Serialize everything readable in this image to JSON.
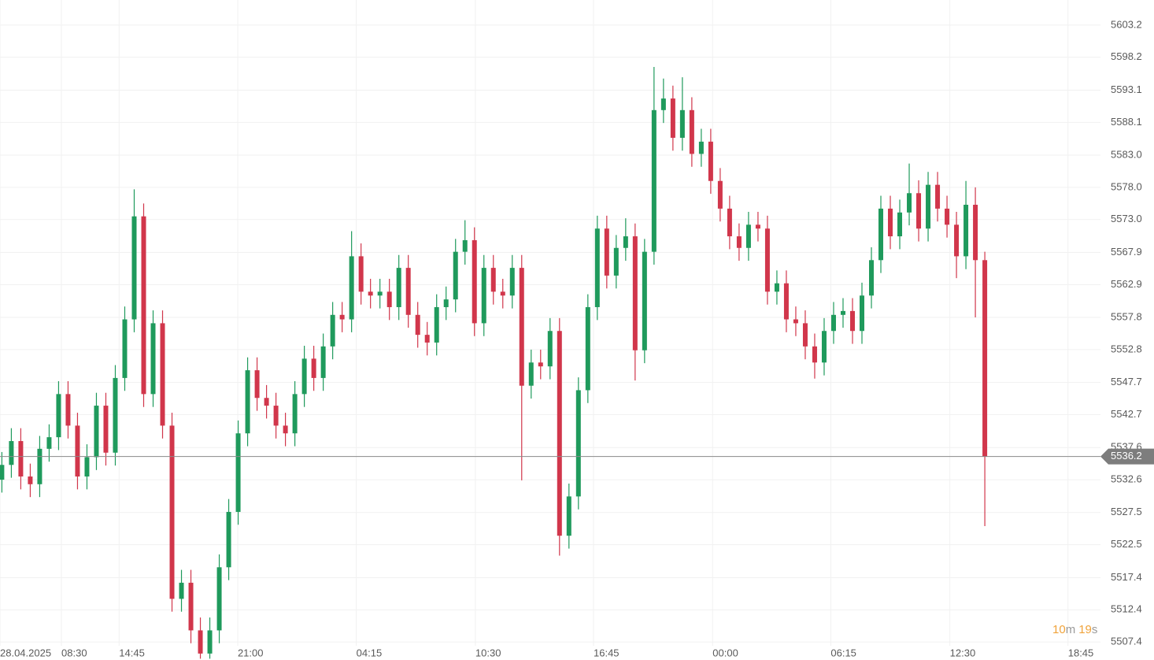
{
  "chart_data": {
    "type": "candlestick",
    "up_color": "#1f9a5c",
    "down_color": "#d1364b",
    "grid": true,
    "xlim": [
      -0.2,
      121.9
    ],
    "ylim": [
      5504.6,
      5607.1
    ],
    "xticks": [
      {
        "value": -0.2,
        "label": "28.04.2025"
      },
      {
        "value": 6.3,
        "label": "08:30"
      },
      {
        "value": 12.4,
        "label": "14:45"
      },
      {
        "value": 24.95,
        "label": "21:00"
      },
      {
        "value": 37.5,
        "label": "04:15"
      },
      {
        "value": 50.1,
        "label": "10:30"
      },
      {
        "value": 62.6,
        "label": "16:45"
      },
      {
        "value": 75.2,
        "label": "00:00"
      },
      {
        "value": 87.7,
        "label": "06:15"
      },
      {
        "value": 100.3,
        "label": "12:30"
      },
      {
        "value": 112.8,
        "label": "18:45"
      }
    ],
    "yticks": [
      5507.4,
      5512.4,
      5517.4,
      5522.5,
      5527.5,
      5532.6,
      5537.6,
      5542.7,
      5547.7,
      5552.8,
      5557.8,
      5562.9,
      5567.9,
      {
        "value": 5573,
        "label": "5573.0"
      },
      {
        "value": 5578,
        "label": "5578.0"
      },
      {
        "value": 5583,
        "label": "5583.0"
      },
      5588.1,
      5593.1,
      5598.2,
      5603.2
    ],
    "last_price": 5536.2,
    "countdown_minutes": "10",
    "countdown_minutes_unit": "m",
    "countdown_seconds": "19",
    "countdown_seconds_unit": "s",
    "open": [
      5532.6,
      5534.9,
      5538.6,
      5533.1,
      5531.9,
      5537.4,
      5539.2,
      5545.9,
      5541.0,
      5533.1,
      5536.1,
      5544.1,
      5536.8,
      5548.4,
      5557.5,
      5573.5,
      5545.9,
      5556.9,
      5541.0,
      5514.1,
      5516.6,
      5509.2,
      5505.6,
      5509.2,
      5519.0,
      5527.6,
      5539.8,
      5549.6,
      5545.3,
      5544.1,
      5541.0,
      5539.8,
      5545.9,
      5551.4,
      5548.4,
      5553.3,
      5558.2,
      5557.5,
      5567.3,
      5561.8,
      5561.2,
      5561.8,
      5559.4,
      5565.5,
      5558.2,
      5555.1,
      5553.9,
      5559.4,
      5560.6,
      5568.0,
      5569.8,
      5556.9,
      5565.5,
      5561.8,
      5561.2,
      5565.5,
      5547.2,
      5550.8,
      5550.2,
      5555.7,
      5523.9,
      5530.0,
      5546.5,
      5559.4,
      5571.6,
      5564.3,
      5568.6,
      5570.4,
      5552.7,
      5568.0,
      5590.0,
      5591.8,
      5585.7,
      5590.0,
      5583.2,
      5585.1,
      5579.0,
      5574.7,
      5570.4,
      5568.6,
      5572.2,
      5571.6,
      5561.8,
      5563.1,
      5557.5,
      5556.9,
      5553.3,
      5550.8,
      5555.7,
      5558.2,
      5558.8,
      5555.7,
      5561.2,
      5566.7,
      5574.7,
      5570.4,
      5574.1,
      5577.1,
      5571.6,
      5578.4,
      5574.7,
      5572.2,
      5567.3,
      5575.3,
      5566.7
    ],
    "close": [
      5534.9,
      5538.6,
      5533.1,
      5531.9,
      5537.4,
      5539.2,
      5545.9,
      5541.0,
      5533.1,
      5536.1,
      5544.1,
      5536.8,
      5548.4,
      5557.5,
      5573.5,
      5545.9,
      5556.9,
      5541.0,
      5514.1,
      5516.6,
      5509.2,
      5505.6,
      5509.2,
      5519.0,
      5527.6,
      5539.8,
      5549.6,
      5545.3,
      5544.1,
      5541.0,
      5539.8,
      5545.9,
      5551.4,
      5548.4,
      5553.3,
      5558.2,
      5557.5,
      5567.3,
      5561.8,
      5561.2,
      5561.8,
      5559.4,
      5565.5,
      5558.2,
      5555.1,
      5553.9,
      5559.4,
      5560.6,
      5568.0,
      5569.8,
      5556.9,
      5565.5,
      5561.8,
      5561.2,
      5565.5,
      5547.2,
      5550.8,
      5550.2,
      5555.7,
      5523.9,
      5530.0,
      5546.5,
      5559.4,
      5571.6,
      5564.3,
      5568.6,
      5570.4,
      5552.7,
      5568.0,
      5590.0,
      5591.8,
      5585.7,
      5590.0,
      5583.2,
      5585.1,
      5579.0,
      5574.7,
      5570.4,
      5568.6,
      5572.2,
      5571.6,
      5561.8,
      5563.1,
      5557.5,
      5556.9,
      5553.3,
      5550.8,
      5555.7,
      5558.2,
      5558.8,
      5555.7,
      5561.2,
      5566.7,
      5574.7,
      5570.4,
      5574.1,
      5577.1,
      5571.6,
      5578.4,
      5574.7,
      5572.2,
      5567.3,
      5575.3,
      5566.7,
      5536.2
    ],
    "high": [
      5536.9,
      5540.6,
      5540.6,
      5535.1,
      5539.4,
      5541.2,
      5547.9,
      5547.9,
      5543.0,
      5538.1,
      5546.1,
      5546.1,
      5550.4,
      5559.5,
      5577.7,
      5575.5,
      5558.9,
      5558.9,
      5543.0,
      5518.6,
      5518.6,
      5511.2,
      5511.2,
      5521.0,
      5529.6,
      5541.8,
      5551.6,
      5551.6,
      5547.3,
      5546.1,
      5543.0,
      5547.9,
      5553.4,
      5553.4,
      5555.3,
      5560.2,
      5560.2,
      5571.2,
      5569.3,
      5563.8,
      5563.8,
      5563.8,
      5567.5,
      5567.5,
      5560.2,
      5557.1,
      5561.4,
      5562.6,
      5570.0,
      5572.9,
      5571.8,
      5567.5,
      5567.5,
      5563.8,
      5567.5,
      5567.5,
      5552.8,
      5552.8,
      5557.7,
      5557.7,
      5532.0,
      5548.5,
      5561.4,
      5573.6,
      5573.6,
      5570.6,
      5573.2,
      5572.4,
      5570.0,
      5596.7,
      5594.9,
      5593.8,
      5595.1,
      5592.0,
      5587.1,
      5587.1,
      5581.0,
      5576.7,
      5572.4,
      5574.2,
      5574.2,
      5573.6,
      5565.1,
      5565.1,
      5559.5,
      5558.9,
      5555.3,
      5557.7,
      5560.2,
      5560.8,
      5560.8,
      5563.2,
      5568.7,
      5576.7,
      5576.7,
      5576.1,
      5581.7,
      5579.1,
      5580.4,
      5580.4,
      5576.7,
      5574.2,
      5579.0,
      5578.0,
      5568.0
    ],
    "low": [
      5530.6,
      5532.9,
      5531.1,
      5529.9,
      5529.9,
      5535.4,
      5537.2,
      5539.0,
      5531.1,
      5531.1,
      5534.1,
      5534.8,
      5534.8,
      5546.4,
      5555.5,
      5543.9,
      5543.9,
      5539.0,
      5512.1,
      5512.1,
      5507.2,
      5504.8,
      5504.8,
      5507.2,
      5517.0,
      5525.6,
      5537.8,
      5543.3,
      5542.1,
      5539.0,
      5537.8,
      5537.8,
      5543.9,
      5546.4,
      5546.4,
      5551.3,
      5555.5,
      5555.5,
      5559.8,
      5559.2,
      5559.2,
      5557.4,
      5557.4,
      5556.2,
      5553.1,
      5551.9,
      5551.9,
      5557.4,
      5558.6,
      5566.0,
      5554.9,
      5554.9,
      5559.8,
      5559.2,
      5559.2,
      5532.5,
      5545.2,
      5548.2,
      5548.2,
      5520.8,
      5521.9,
      5528.0,
      5544.5,
      5557.4,
      5562.3,
      5562.3,
      5566.6,
      5548.0,
      5550.7,
      5566.0,
      5588.0,
      5583.7,
      5583.7,
      5581.2,
      5581.2,
      5577.0,
      5572.7,
      5568.4,
      5566.6,
      5566.6,
      5569.6,
      5559.8,
      5559.8,
      5555.5,
      5554.9,
      5551.3,
      5548.3,
      5548.8,
      5553.7,
      5556.2,
      5553.7,
      5553.7,
      5559.2,
      5564.7,
      5568.4,
      5568.4,
      5572.1,
      5569.6,
      5569.6,
      5572.7,
      5570.2,
      5563.9,
      5565.3,
      5557.8,
      5525.4
    ]
  }
}
